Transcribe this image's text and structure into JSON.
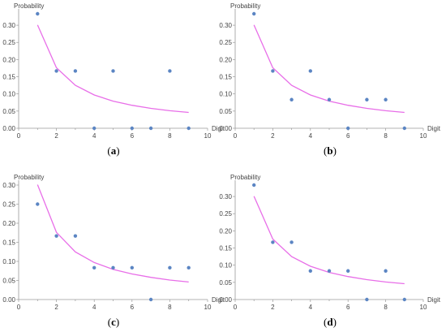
{
  "colors": {
    "points": "#5b85c3",
    "line": "#e86ee8",
    "axis": "#9a9a9a",
    "text": "#444444"
  },
  "chart_data": [
    {
      "type": "scatter",
      "caption": "a",
      "xlabel": "Digit",
      "ylabel": "Probability",
      "xlim": [
        0,
        10
      ],
      "ylim": [
        0,
        0.3333
      ],
      "xticks": [
        0,
        2,
        4,
        6,
        8,
        10
      ],
      "yticks": [
        "0.00",
        "0.05",
        "0.10",
        "0.15",
        "0.20",
        "0.25",
        "0.30"
      ],
      "points": {
        "x": [
          1,
          2,
          3,
          4,
          5,
          6,
          7,
          8,
          9
        ],
        "y": [
          0.3333,
          0.1667,
          0.1667,
          0,
          0.1667,
          0,
          0,
          0.1667,
          0
        ]
      },
      "curve": {
        "x": [
          1,
          2,
          3,
          4,
          5,
          6,
          7,
          8,
          9
        ],
        "y": [
          0.301,
          0.176,
          0.125,
          0.097,
          0.079,
          0.067,
          0.058,
          0.051,
          0.046
        ]
      }
    },
    {
      "type": "scatter",
      "caption": "b",
      "xlabel": "Digit",
      "ylabel": "Probability",
      "xlim": [
        0,
        10
      ],
      "ylim": [
        0,
        0.3333
      ],
      "xticks": [
        0,
        2,
        4,
        6,
        8,
        10
      ],
      "yticks": [
        "0.00",
        "0.05",
        "0.10",
        "0.15",
        "0.20",
        "0.25",
        "0.30"
      ],
      "points": {
        "x": [
          1,
          2,
          3,
          4,
          5,
          6,
          7,
          8,
          9
        ],
        "y": [
          0.3333,
          0.1667,
          0.0833,
          0.1667,
          0.0833,
          0,
          0.0833,
          0.0833,
          0
        ]
      },
      "curve": {
        "x": [
          1,
          2,
          3,
          4,
          5,
          6,
          7,
          8,
          9
        ],
        "y": [
          0.301,
          0.176,
          0.125,
          0.097,
          0.079,
          0.067,
          0.058,
          0.051,
          0.046
        ]
      }
    },
    {
      "type": "scatter",
      "caption": "c",
      "xlabel": "Digit",
      "ylabel": "Probability",
      "xlim": [
        0,
        10
      ],
      "ylim": [
        0,
        0.3
      ],
      "xticks": [
        0,
        2,
        4,
        6,
        8,
        10
      ],
      "yticks": [
        "0.00",
        "0.05",
        "0.10",
        "0.15",
        "0.20",
        "0.25",
        "0.30"
      ],
      "points": {
        "x": [
          1,
          2,
          3,
          4,
          5,
          6,
          7,
          8,
          9
        ],
        "y": [
          0.25,
          0.1667,
          0.1667,
          0.0833,
          0.0833,
          0.0833,
          0,
          0.0833,
          0.0833
        ]
      },
      "curve": {
        "x": [
          1,
          2,
          3,
          4,
          5,
          6,
          7,
          8,
          9
        ],
        "y": [
          0.301,
          0.176,
          0.125,
          0.097,
          0.079,
          0.067,
          0.058,
          0.051,
          0.046
        ]
      }
    },
    {
      "type": "scatter",
      "caption": "d",
      "xlabel": "Digit",
      "ylabel": "Probability",
      "xlim": [
        0,
        10
      ],
      "ylim": [
        0,
        0.3333
      ],
      "xticks": [
        0,
        2,
        4,
        6,
        8,
        10
      ],
      "yticks": [
        "0.00",
        "0.05",
        "0.10",
        "0.15",
        "0.20",
        "0.25",
        "0.30"
      ],
      "points": {
        "x": [
          1,
          2,
          3,
          4,
          5,
          6,
          7,
          8,
          9
        ],
        "y": [
          0.3333,
          0.1667,
          0.1667,
          0.0833,
          0.0833,
          0.0833,
          0,
          0.0833,
          0
        ]
      },
      "curve": {
        "x": [
          1,
          2,
          3,
          4,
          5,
          6,
          7,
          8,
          9
        ],
        "y": [
          0.301,
          0.176,
          0.125,
          0.097,
          0.079,
          0.067,
          0.058,
          0.051,
          0.046
        ]
      }
    }
  ]
}
